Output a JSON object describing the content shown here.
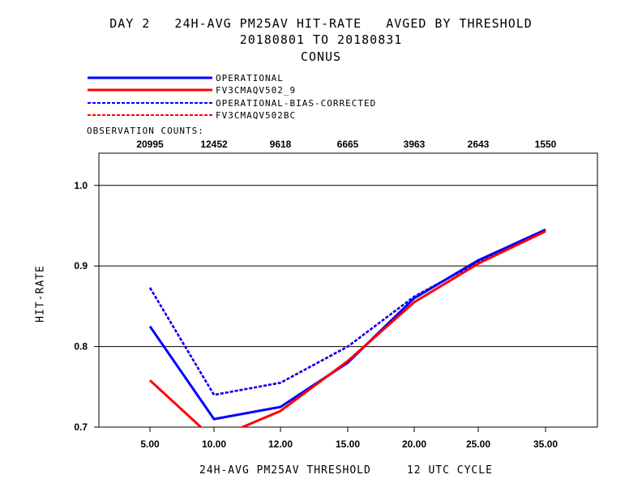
{
  "title": {
    "line1": "DAY 2   24H-AVG PM25AV HIT-RATE   AVGED BY THRESHOLD",
    "line2": "20180801 TO 20180831",
    "line3": "CONUS"
  },
  "legend": {
    "entries": [
      {
        "label": "OPERATIONAL",
        "color": "#0000ff",
        "style": "solid"
      },
      {
        "label": "FV3CMAQV502_9",
        "color": "#ff0000",
        "style": "solid"
      },
      {
        "label": "OPERATIONAL-BIAS-CORRECTED",
        "color": "#0000ff",
        "style": "dashed"
      },
      {
        "label": "FV3CMAQV502BC",
        "color": "#ff0000",
        "style": "dashed"
      }
    ]
  },
  "observation_counts": {
    "title": "OBSERVATION COUNTS:",
    "values": [
      "20995",
      "12452",
      "9618",
      "6665",
      "3963",
      "2643",
      "1550"
    ]
  },
  "chart_data": {
    "type": "line",
    "categories": [
      "5.00",
      "10.00",
      "12.00",
      "15.00",
      "20.00",
      "25.00",
      "35.00"
    ],
    "xlabel": "24H-AVG PM25AV THRESHOLD     12 UTC CYCLE",
    "ylabel": "HIT-RATE",
    "ylim": [
      0.7,
      1.04
    ],
    "yticks": [
      "0.7",
      "0.8",
      "0.9",
      "1.0"
    ],
    "grid": "horizontal",
    "series": [
      {
        "name": "OPERATIONAL",
        "color": "#0000ff",
        "style": "solid",
        "values": [
          0.825,
          0.71,
          0.725,
          0.78,
          0.86,
          0.907,
          0.945
        ]
      },
      {
        "name": "FV3CMAQV502_9",
        "color": "#ff0000",
        "style": "solid",
        "values": [
          0.758,
          0.685,
          0.72,
          0.782,
          0.855,
          0.903,
          0.943
        ]
      },
      {
        "name": "OPERATIONAL-BIAS-CORRECTED",
        "color": "#0000ff",
        "style": "dashed",
        "values": [
          0.873,
          0.74,
          0.755,
          0.8,
          0.862,
          0.905,
          0.945
        ]
      },
      {
        "name": "FV3CMAQV502BC",
        "color": "#ff0000",
        "style": "dashed",
        "values": [
          0.873,
          0.74,
          0.755,
          0.8,
          0.862,
          0.905,
          0.944
        ]
      }
    ]
  }
}
